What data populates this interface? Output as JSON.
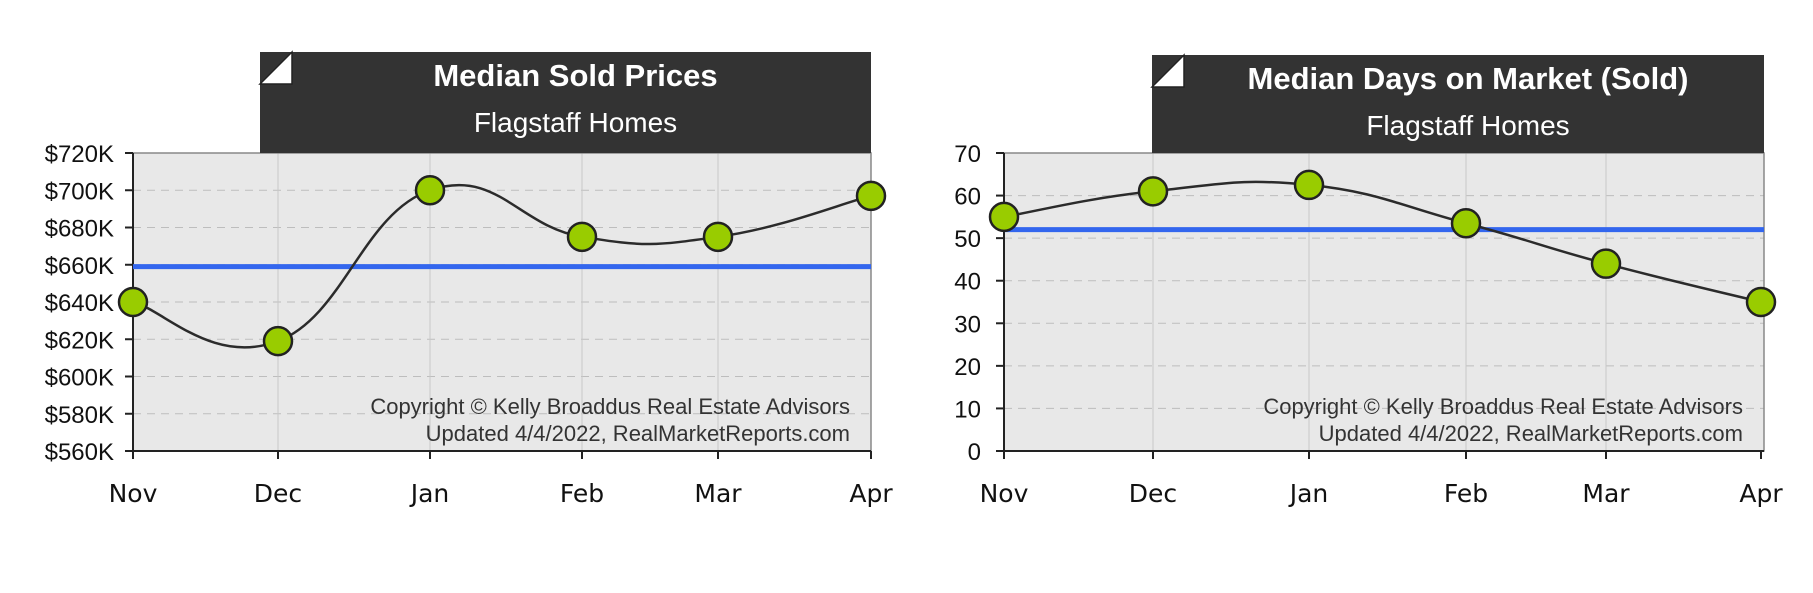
{
  "chart_data": [
    {
      "type": "line",
      "title": "Median Sold Prices",
      "subtitle": "Flagstaff Homes",
      "categories": [
        "Nov",
        "Dec",
        "Jan",
        "Feb",
        "Mar",
        "Apr"
      ],
      "series": [
        {
          "values": [
            640000,
            619000,
            700000,
            675000,
            675000,
            697000
          ]
        }
      ],
      "average_line": 659000,
      "ylim": [
        560000,
        720000
      ],
      "yticks": [
        560000,
        580000,
        600000,
        620000,
        640000,
        660000,
        680000,
        700000,
        720000
      ],
      "ytick_labels": [
        "$560K",
        "$580K",
        "$600K",
        "$620K",
        "$640K",
        "$660K",
        "$680K",
        "$700K",
        "$720K"
      ],
      "grid": true,
      "copyright": [
        "Copyright © Kelly Broaddus Real Estate Advisors",
        "Updated 4/4/2022, RealMarketReports.com"
      ],
      "colors": {
        "line": "#2b2b2b",
        "marker": "#99cc00",
        "average": "#3366ee",
        "plot_bg": "#e8e8e8",
        "header_bg": "#333333"
      }
    },
    {
      "type": "line",
      "title": "Median Days on Market (Sold)",
      "subtitle": "Flagstaff Homes",
      "categories": [
        "Nov",
        "Dec",
        "Jan",
        "Feb",
        "Mar",
        "Apr"
      ],
      "series": [
        {
          "values": [
            55,
            61,
            62.5,
            53.5,
            44,
            35
          ]
        }
      ],
      "average_line": 52,
      "ylim": [
        0,
        70
      ],
      "yticks": [
        0,
        10,
        20,
        30,
        40,
        50,
        60,
        70
      ],
      "ytick_labels": [
        "0",
        "10",
        "20",
        "30",
        "40",
        "50",
        "60",
        "70"
      ],
      "grid": true,
      "copyright": [
        "Copyright © Kelly Broaddus Real Estate Advisors",
        "Updated 4/4/2022, RealMarketReports.com"
      ],
      "colors": {
        "line": "#2b2b2b",
        "marker": "#99cc00",
        "average": "#3366ee",
        "plot_bg": "#e8e8e8",
        "header_bg": "#333333"
      }
    }
  ]
}
